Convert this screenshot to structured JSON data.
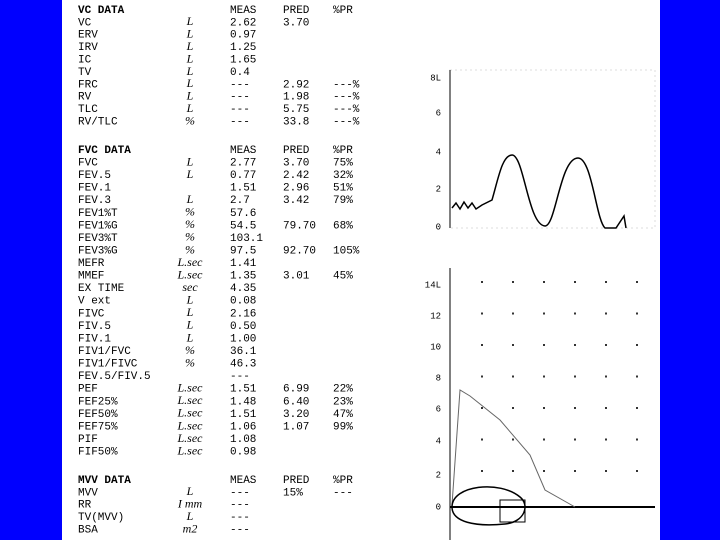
{
  "sections": [
    {
      "header": {
        "name": "VC DATA",
        "meas": "MEAS",
        "pred": "PRED",
        "pr": "%PR"
      },
      "rows": [
        {
          "label": "VC",
          "unit": "L",
          "meas": "2.62",
          "pred": "3.70"
        },
        {
          "label": "ERV",
          "unit": "L",
          "meas": "0.97"
        },
        {
          "label": "IRV",
          "unit": "L",
          "meas": "1.25"
        },
        {
          "label": "IC",
          "unit": "L",
          "meas": "1.65"
        },
        {
          "label": "TV",
          "unit": "L",
          "meas": "0.4"
        },
        {
          "label": "FRC",
          "unit": "L",
          "meas": "---",
          "pred": "2.92",
          "pr": "---%"
        },
        {
          "label": "RV",
          "unit": "L",
          "meas": "---",
          "pred": "1.98",
          "pr": "---%"
        },
        {
          "label": "TLC",
          "unit": "L",
          "meas": "---",
          "pred": "5.75",
          "pr": "---%"
        },
        {
          "label": "RV/TLC",
          "unit": "%",
          "meas": "---",
          "pred": "33.8",
          "pr": "---%"
        }
      ]
    },
    {
      "header": {
        "name": "FVC DATA",
        "meas": "MEAS",
        "pred": "PRED",
        "pr": "%PR"
      },
      "rows": [
        {
          "label": "FVC",
          "unit": "L",
          "meas": "2.77",
          "pred": "3.70",
          "pr": "75%"
        },
        {
          "label": "FEV.5",
          "unit": "L",
          "meas": "0.77",
          "pred": "2.42",
          "pr": "32%"
        },
        {
          "label": "FEV.1",
          "meas": "1.51",
          "pred": "2.96",
          "pr": "51%"
        },
        {
          "label": "FEV.3",
          "unit": "L",
          "meas": "2.7",
          "pred": "3.42",
          "pr": "79%"
        },
        {
          "label": "FEV1%T",
          "unit": "%",
          "meas": "57.6"
        },
        {
          "label": "FEV1%G",
          "unit": "%",
          "meas": "54.5",
          "pred": "79.70",
          "pr": "68%"
        },
        {
          "label": "FEV3%T",
          "unit": "%",
          "meas": "103.1"
        },
        {
          "label": "FEV3%G",
          "unit": "%",
          "meas": "97.5",
          "pred": "92.70",
          "pr": "105%"
        },
        {
          "label": "MEFR",
          "unit": "L.sec",
          "meas": "1.41"
        },
        {
          "label": "MMEF",
          "unit": "L.sec",
          "meas": "1.35",
          "pred": "3.01",
          "pr": "45%"
        },
        {
          "label": "EX TIME",
          "unit": "sec",
          "meas": "4.35"
        },
        {
          "label": "V ext",
          "unit": "L",
          "meas": "0.08"
        },
        {
          "label": "FIVC",
          "unit": "L",
          "meas": "2.16"
        },
        {
          "label": "FIV.5",
          "unit": "L",
          "meas": "0.50"
        },
        {
          "label": "FIV.1",
          "unit": "L",
          "meas": "1.00"
        },
        {
          "label": "FIV1/FVC",
          "unit": "%",
          "meas": "36.1"
        },
        {
          "label": "FIV1/FIVC",
          "unit": "%",
          "meas": "46.3"
        },
        {
          "label": "FEV.5/FIV.5",
          "meas": "---"
        },
        {
          "label": "PEF",
          "unit": "L.sec",
          "meas": "1.51",
          "pred": "6.99",
          "pr": "22%"
        },
        {
          "label": "FEF25%",
          "unit": "L.sec",
          "meas": "1.48",
          "pred": "6.40",
          "pr": "23%"
        },
        {
          "label": "FEF50%",
          "unit": "L.sec",
          "meas": "1.51",
          "pred": "3.20",
          "pr": "47%"
        },
        {
          "label": "FEF75%",
          "unit": "L.sec",
          "meas": "1.06",
          "pred": "1.07",
          "pr": "99%"
        },
        {
          "label": "PIF",
          "unit": "L.sec",
          "meas": "1.08"
        },
        {
          "label": "FIF50%",
          "unit": "L.sec",
          "meas": "0.98"
        }
      ]
    },
    {
      "header": {
        "name": "MVV DATA",
        "meas": "MEAS",
        "pred": "PRED",
        "pr": "%PR"
      },
      "rows": [
        {
          "label": "MVV",
          "unit": "L",
          "meas": "---",
          "pred": "15%",
          "pr": "---"
        },
        {
          "label": "RR",
          "unit": "I mm",
          "meas": "---"
        },
        {
          "label": "TV(MVV)",
          "unit": "L",
          "meas": "---"
        },
        {
          "label": "BSA",
          "unit": "m2",
          "meas": "---"
        }
      ]
    }
  ],
  "volume_time_graph": {
    "axis_labels": [
      "8L",
      "6",
      "4",
      "2",
      "0"
    ]
  },
  "flow_volume_graph": {
    "axis_labels": [
      "14L",
      "12",
      "10",
      "8",
      "6",
      "4",
      "2",
      "0"
    ]
  }
}
